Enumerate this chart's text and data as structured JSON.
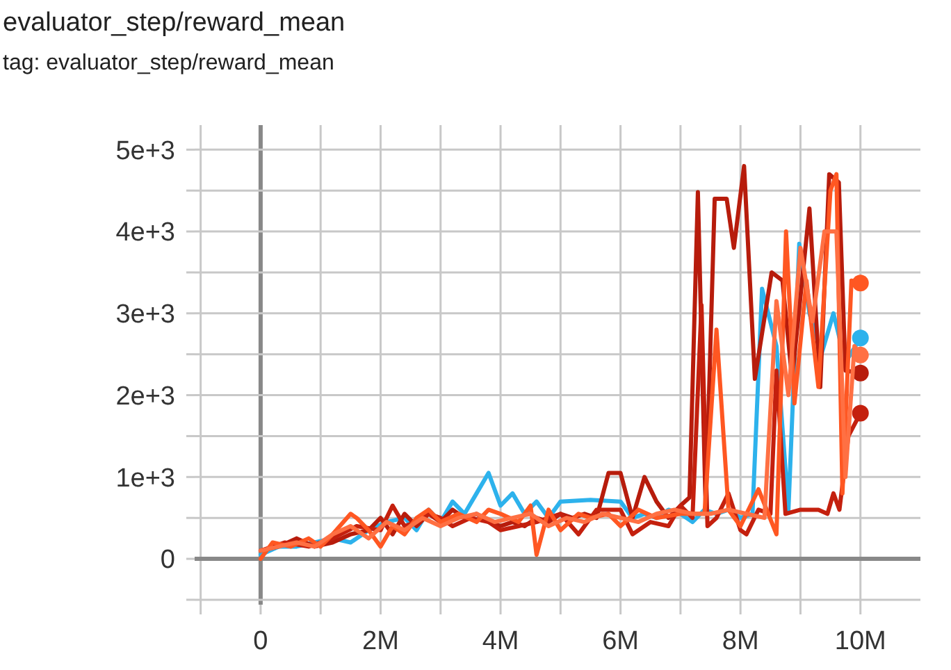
{
  "chart_data": {
    "type": "line",
    "title": "evaluator_step/reward_mean",
    "subtitle": "tag: evaluator_step/reward_mean",
    "xlim": [
      -1100000,
      11000000
    ],
    "ylim": [
      -560,
      5300
    ],
    "xticks": [
      {
        "value": -1000000,
        "label": null
      },
      0,
      {
        "value": 1000000,
        "label": null
      },
      {
        "value": 2000000,
        "label": "2M"
      },
      {
        "value": 3000000,
        "label": null
      },
      {
        "value": 4000000,
        "label": "4M"
      },
      {
        "value": 5000000,
        "label": null
      },
      {
        "value": 6000000,
        "label": "6M"
      },
      {
        "value": 7000000,
        "label": null
      },
      {
        "value": 8000000,
        "label": "8M"
      },
      {
        "value": 9000000,
        "label": null
      },
      {
        "value": 10000000,
        "label": "10M"
      }
    ],
    "yticks": [
      {
        "value": -500,
        "label": null
      },
      0,
      {
        "value": 500,
        "label": null
      },
      {
        "value": 1000,
        "label": "1e+3"
      },
      {
        "value": 1500,
        "label": null
      },
      {
        "value": 2000,
        "label": "2e+3"
      },
      {
        "value": 2500,
        "label": null
      },
      {
        "value": 3000,
        "label": "3e+3"
      },
      {
        "value": 3500,
        "label": null
      },
      {
        "value": 4000,
        "label": "4e+3"
      },
      {
        "value": 4500,
        "label": null
      },
      {
        "value": 5000,
        "label": "5e+3"
      }
    ],
    "grid": true,
    "series": [
      {
        "color": "#2db2ec",
        "x": [
          0,
          300000,
          600000,
          900000,
          1200000,
          1500000,
          1800000,
          2100000,
          2400000,
          2600000,
          2800000,
          3000000,
          3200000,
          3400000,
          3600000,
          3800000,
          4000000,
          4200000,
          4400000,
          4600000,
          4800000,
          5000000,
          5500000,
          6000000,
          6200000,
          6400000,
          6600000,
          6800000,
          7000000,
          7200000,
          7400000,
          7600000,
          7800000,
          8000000,
          8200000,
          8360000,
          8600000,
          8800000,
          8980000,
          9150000,
          9350000,
          9550000,
          9750000,
          10000000
        ],
        "values": [
          50,
          150,
          150,
          200,
          250,
          200,
          350,
          450,
          500,
          350,
          600,
          450,
          700,
          550,
          800,
          1050,
          650,
          800,
          550,
          700,
          500,
          700,
          720,
          700,
          500,
          550,
          500,
          600,
          550,
          450,
          600,
          550,
          600,
          500,
          550,
          3300,
          2600,
          600,
          3850,
          3000,
          2500,
          3000,
          2400,
          2700
        ]
      },
      {
        "color": "#b71c0c",
        "x": [
          0,
          300000,
          600000,
          900000,
          1200000,
          1500000,
          1800000,
          2000000,
          2200000,
          2400000,
          2600000,
          2800000,
          3000000,
          3200000,
          3400000,
          3600000,
          3800000,
          4000000,
          4200000,
          4400000,
          4600000,
          4800000,
          5000000,
          5200000,
          5400000,
          5600000,
          5800000,
          6000000,
          6200000,
          6400000,
          6600000,
          6800000,
          7000000,
          7150000,
          7290000,
          7420000,
          7570000,
          7770000,
          7890000,
          8060000,
          8240000,
          8520000,
          8700000,
          8860000,
          9150000,
          9330000,
          9480000,
          9640000,
          9750000,
          10000000
        ],
        "values": [
          100,
          150,
          250,
          150,
          200,
          300,
          350,
          500,
          300,
          550,
          400,
          550,
          450,
          600,
          500,
          550,
          450,
          400,
          450,
          400,
          500,
          450,
          550,
          500,
          550,
          500,
          1050,
          1050,
          500,
          1000,
          700,
          500,
          650,
          750,
          4480,
          600,
          4400,
          4400,
          3800,
          4800,
          2200,
          3500,
          3400,
          2200,
          4280,
          2100,
          4700,
          4600,
          2300,
          2270
        ]
      },
      {
        "color": "#c4200e",
        "x": [
          0,
          400000,
          800000,
          1200000,
          1600000,
          2000000,
          2200000,
          2400000,
          2600000,
          2800000,
          3000000,
          3200000,
          3500000,
          3800000,
          4000000,
          4300000,
          4600000,
          5000000,
          5300000,
          5600000,
          6000000,
          6200000,
          6500000,
          6800000,
          7000000,
          7200000,
          7350000,
          7450000,
          7600000,
          7800000,
          8000000,
          8100000,
          8300000,
          8500000,
          8600000,
          8750000,
          9000000,
          9300000,
          9450000,
          9550000,
          9650000,
          9800000,
          10000000
        ],
        "values": [
          100,
          200,
          150,
          250,
          400,
          350,
          650,
          400,
          450,
          550,
          500,
          400,
          500,
          450,
          350,
          400,
          450,
          550,
          300,
          600,
          600,
          300,
          450,
          400,
          650,
          500,
          3100,
          400,
          500,
          800,
          350,
          300,
          600,
          550,
          2300,
          550,
          600,
          600,
          550,
          800,
          600,
          1500,
          1780
        ]
      },
      {
        "color": "#ff5722",
        "x": [
          0,
          200000,
          500000,
          800000,
          1000000,
          1200000,
          1500000,
          1600000,
          1800000,
          2000000,
          2200000,
          2400000,
          2600000,
          2800000,
          3000000,
          3300000,
          3600000,
          3800000,
          4000000,
          4300000,
          4500000,
          4600000,
          4800000,
          5000000,
          5300000,
          5500000,
          5800000,
          6000000,
          6300000,
          6600000,
          7000000,
          7400000,
          7600000,
          7800000,
          8000000,
          8300000,
          8600000,
          8760000,
          8900000,
          9100000,
          9300000,
          9500000,
          9600000,
          9700000,
          9850000,
          10000000
        ],
        "values": [
          0,
          200,
          150,
          250,
          150,
          300,
          550,
          500,
          350,
          150,
          400,
          300,
          500,
          600,
          450,
          550,
          450,
          600,
          550,
          450,
          650,
          50,
          600,
          350,
          550,
          500,
          550,
          400,
          600,
          500,
          550,
          550,
          2800,
          600,
          400,
          850,
          300,
          4000,
          1900,
          3400,
          2100,
          4500,
          4700,
          800,
          3400,
          3370
        ]
      },
      {
        "color": "#ff7043",
        "x": [
          0,
          300000,
          600000,
          900000,
          1200000,
          1500000,
          1800000,
          2100000,
          2400000,
          2700000,
          3000000,
          3300000,
          3600000,
          3900000,
          4200000,
          4500000,
          4800000,
          5100000,
          5400000,
          5700000,
          6000000,
          6300000,
          6600000,
          6900000,
          7200000,
          7500000,
          7800000,
          8100000,
          8400000,
          8600000,
          8800000,
          9000000,
          9200000,
          9400000,
          9600000,
          9750000,
          9900000,
          10000000
        ],
        "values": [
          100,
          150,
          200,
          150,
          300,
          400,
          250,
          450,
          350,
          500,
          400,
          500,
          550,
          450,
          500,
          550,
          400,
          500,
          450,
          550,
          500,
          450,
          550,
          600,
          550,
          550,
          600,
          550,
          500,
          3150,
          2000,
          3800,
          2900,
          4000,
          4000,
          1000,
          2600,
          2490
        ]
      }
    ]
  }
}
